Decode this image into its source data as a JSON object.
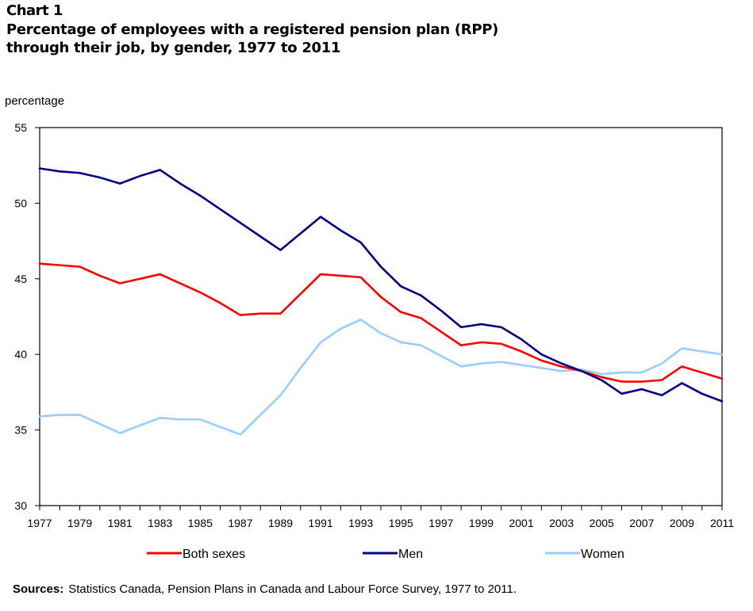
{
  "chart_number": "Chart 1",
  "title": "Percentage of employees with a registered pension plan (RPP)\nthrough their job, by gender, 1977 to 2011",
  "sources_label": "Sources:",
  "sources_text": "Statistics Canada, Pension Plans in Canada and Labour Force Survey, 1977 to 2011.",
  "chart_data": {
    "type": "line",
    "title": "Percentage of employees with a registered pension plan (RPP) through their job, by gender, 1977 to 2011",
    "xlabel": "",
    "ylabel": "percentage",
    "x": [
      1977,
      1978,
      1979,
      1980,
      1981,
      1982,
      1983,
      1984,
      1985,
      1986,
      1987,
      1988,
      1989,
      1990,
      1991,
      1992,
      1993,
      1994,
      1995,
      1996,
      1997,
      1998,
      1999,
      2000,
      2001,
      2002,
      2003,
      2004,
      2005,
      2006,
      2007,
      2008,
      2009,
      2010,
      2011
    ],
    "x_ticks": [
      "1977",
      "1979",
      "1981",
      "1983",
      "1985",
      "1987",
      "1989",
      "1991",
      "1993",
      "1995",
      "1997",
      "1999",
      "2001",
      "2003",
      "2005",
      "2007",
      "2009",
      "2011"
    ],
    "xlim": [
      1977,
      2011
    ],
    "ylim": [
      30,
      55
    ],
    "y_ticks": [
      30,
      35,
      40,
      45,
      50,
      55
    ],
    "grid": false,
    "legend_position": "bottom",
    "series": [
      {
        "name": "Both sexes",
        "color": "#ff0000",
        "values": [
          46.0,
          45.9,
          45.8,
          45.2,
          44.7,
          45.0,
          45.3,
          44.7,
          44.1,
          43.4,
          42.6,
          42.7,
          42.7,
          44.0,
          45.3,
          45.2,
          45.1,
          43.8,
          42.8,
          42.4,
          41.5,
          40.6,
          40.8,
          40.7,
          40.2,
          39.6,
          39.2,
          38.9,
          38.5,
          38.2,
          38.2,
          38.3,
          39.2,
          38.8,
          38.4
        ]
      },
      {
        "name": "Men",
        "color": "#000080",
        "values": [
          52.3,
          52.1,
          52.0,
          51.7,
          51.3,
          51.8,
          52.2,
          51.3,
          50.5,
          49.6,
          48.7,
          47.8,
          46.9,
          48.0,
          49.1,
          48.2,
          47.4,
          45.8,
          44.5,
          43.9,
          42.9,
          41.8,
          42.0,
          41.8,
          41.0,
          40.0,
          39.4,
          38.9,
          38.3,
          37.4,
          37.7,
          37.3,
          38.1,
          37.4,
          36.9
        ]
      },
      {
        "name": "Women",
        "color": "#99ccff",
        "values": [
          35.9,
          36.0,
          36.0,
          35.4,
          34.8,
          35.3,
          35.8,
          35.7,
          35.7,
          35.2,
          34.7,
          36.0,
          37.3,
          39.1,
          40.8,
          41.7,
          42.3,
          41.4,
          40.8,
          40.6,
          39.9,
          39.2,
          39.4,
          39.5,
          39.3,
          39.1,
          38.9,
          39.0,
          38.7,
          38.8,
          38.8,
          39.4,
          40.4,
          40.2,
          40.0
        ]
      }
    ]
  }
}
